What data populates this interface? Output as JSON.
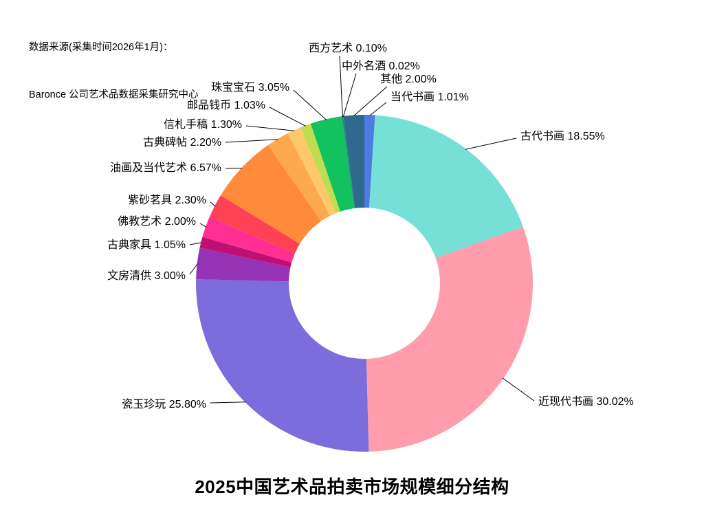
{
  "source": {
    "line1": "数据来源(采集时间2026年1月)：",
    "line2": "Baronce 公司艺术品数据采集研究中心"
  },
  "chart_data": {
    "type": "pie",
    "subtype": "donut",
    "title": "2025中国艺术品拍卖市场规模细分结构",
    "units": "%",
    "start_angle": "top",
    "direction": "clockwise",
    "legend_position": "none",
    "labels_style": "outside-with-leader-lines",
    "slices": [
      {
        "name": "当代书画",
        "value": 1.01,
        "pct_label": "1.01%",
        "color": "#4b7ce0",
        "text": [
          568,
          142
        ],
        "anchor": "start",
        "line": [
          562,
          149
        ]
      },
      {
        "name": "古代书画",
        "value": 18.55,
        "pct_label": "18.55%",
        "color": "#76e0d6",
        "text": [
          757,
          199
        ],
        "anchor": "start",
        "line": [
          751,
          201
        ]
      },
      {
        "name": "近现代书画",
        "value": 30.02,
        "pct_label": "30.02%",
        "color": "#ff9dac",
        "text": [
          783,
          585
        ],
        "anchor": "start",
        "line": [
          777,
          583
        ]
      },
      {
        "name": "瓷玉珍玩",
        "value": 25.8,
        "pct_label": "25.80%",
        "color": "#7d6cdb",
        "text": [
          300,
          589
        ],
        "anchor": "end",
        "line": [
          306,
          586
        ]
      },
      {
        "name": "文房清供",
        "value": 3.0,
        "pct_label": "3.00%",
        "color": "#9632b4",
        "text": [
          270,
          402
        ],
        "anchor": "end",
        "line": [
          276,
          399
        ]
      },
      {
        "name": "古典家具",
        "value": 1.05,
        "pct_label": "1.05%",
        "color": "#bf0f73",
        "text": [
          270,
          357
        ],
        "anchor": "end",
        "line": [
          276,
          356
        ]
      },
      {
        "name": "佛教艺术",
        "value": 2.0,
        "pct_label": "2.00%",
        "color": "#ff2f92",
        "text": [
          285,
          323
        ],
        "anchor": "end",
        "line": [
          291,
          325
        ]
      },
      {
        "name": "紫砂茗具",
        "value": 2.3,
        "pct_label": "2.30%",
        "color": "#ff4155",
        "text": [
          300,
          292
        ],
        "anchor": "end",
        "line": [
          306,
          294
        ]
      },
      {
        "name": "油画及当代艺术",
        "value": 6.57,
        "pct_label": "6.57%",
        "color": "#ff8a3a",
        "text": [
          322,
          245
        ],
        "anchor": "end",
        "line": [
          328,
          245
        ]
      },
      {
        "name": "古典碑帖",
        "value": 2.2,
        "pct_label": "2.20%",
        "color": "#ffa94f",
        "text": [
          322,
          208
        ],
        "anchor": "end",
        "line": [
          328,
          207
        ]
      },
      {
        "name": "信札手稿",
        "value": 1.3,
        "pct_label": "1.30%",
        "color": "#ffc868",
        "text": [
          352,
          182
        ],
        "anchor": "end",
        "line": [
          358,
          183
        ]
      },
      {
        "name": "邮品钱币",
        "value": 1.03,
        "pct_label": "1.03%",
        "color": "#c0dc50",
        "text": [
          386,
          154
        ],
        "anchor": "end",
        "line": [
          392,
          156
        ]
      },
      {
        "name": "珠宝宝石",
        "value": 3.05,
        "pct_label": "3.05%",
        "color": "#12c25e",
        "text": [
          421,
          128
        ],
        "anchor": "end",
        "line": [
          427,
          131
        ]
      },
      {
        "name": "西方艺术",
        "value": 0.1,
        "pct_label": "0.10%",
        "color": "#137f87",
        "text": [
          506,
          71
        ],
        "anchor": "middle",
        "line": [
          494,
          81
        ]
      },
      {
        "name": "中外名酒",
        "value": 0.02,
        "pct_label": "0.02%",
        "color": "#1a7f8c",
        "text": [
          554,
          97
        ],
        "anchor": "middle",
        "line": [
          518,
          107
        ]
      },
      {
        "name": "其他",
        "value": 2.0,
        "pct_label": "2.00%",
        "color": "#2f6a8c",
        "text": [
          594,
          116
        ],
        "anchor": "middle",
        "line": [
          563,
          126
        ]
      }
    ]
  }
}
